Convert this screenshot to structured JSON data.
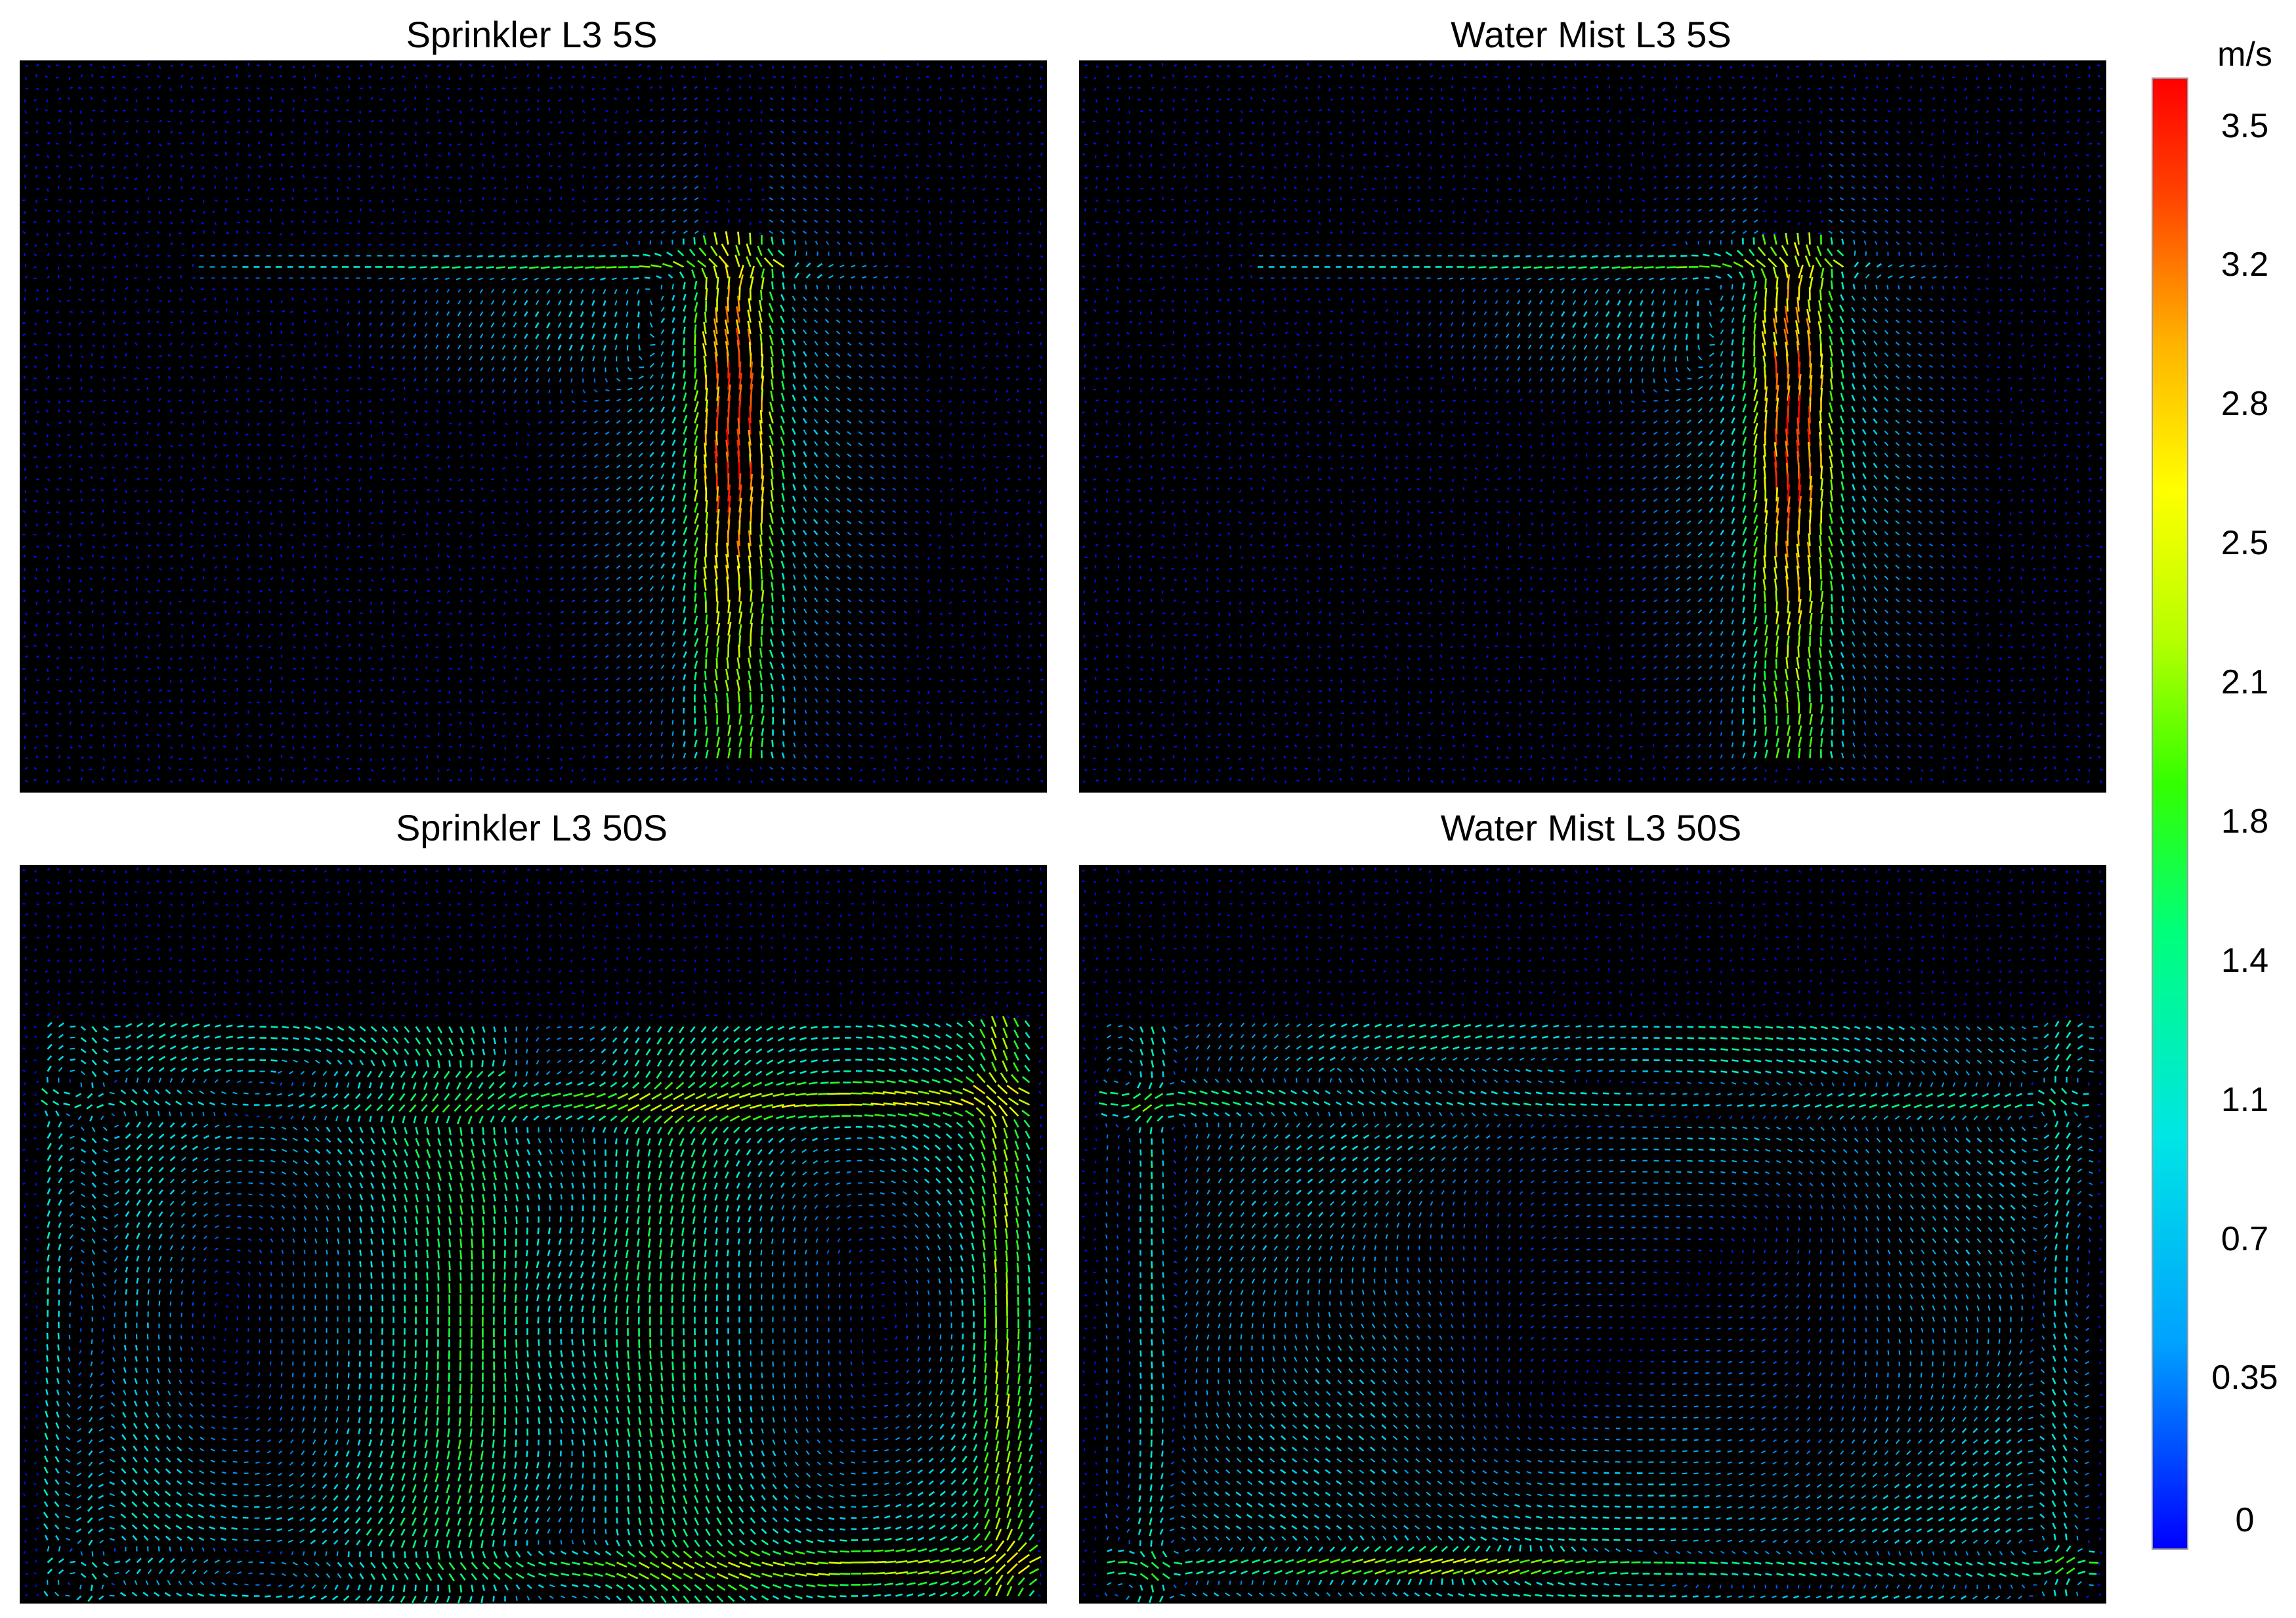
{
  "chart_data": {
    "type": "heatmap",
    "description_kind": "velocity vector field panels",
    "panels": [
      {
        "title": "Sprinkler L3 5S",
        "pattern": "plume5"
      },
      {
        "title": "Water Mist L3 5S",
        "pattern": "plume5"
      },
      {
        "title": "Sprinkler L3 50S",
        "pattern": "circ50a"
      },
      {
        "title": "Water Mist L3 50S",
        "pattern": "circ50b"
      }
    ],
    "colorbar": {
      "unit": "m/s",
      "ticks": [
        "3.5",
        "3.2",
        "2.8",
        "2.5",
        "2.1",
        "1.8",
        "1.4",
        "1.1",
        "0.7",
        "0.35",
        "0"
      ],
      "tick_values": [
        3.5,
        3.2,
        2.8,
        2.5,
        2.1,
        1.8,
        1.4,
        1.1,
        0.7,
        0.35,
        0
      ],
      "range": [
        0,
        3.6
      ],
      "colors": [
        "#0000ff",
        "#00a2ff",
        "#00e5e5",
        "#00ff7a",
        "#33ff00",
        "#b8ff00",
        "#ffff00",
        "#ffb300",
        "#ff4400",
        "#ff0000"
      ]
    }
  }
}
